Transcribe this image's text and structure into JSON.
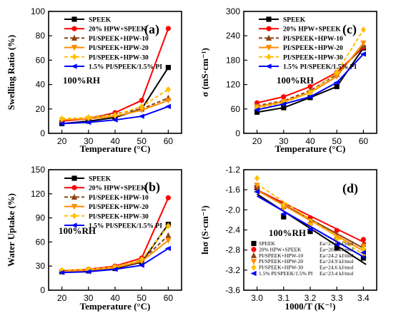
{
  "chart_data": [
    {
      "type": "line",
      "panel": "(a)",
      "condition": "100%RH",
      "xlabel": "Temperature (°C)",
      "ylabel": "Swelling Ratio (%)",
      "x": [
        20,
        30,
        40,
        50,
        60
      ],
      "xlim": [
        15,
        65
      ],
      "xticks": [
        20,
        30,
        40,
        50,
        60
      ],
      "ylim": [
        0,
        100
      ],
      "yticks": [
        0,
        20,
        40,
        60,
        80,
        100
      ],
      "legend_position": "top-left",
      "series": [
        {
          "name": "SPEEK",
          "color": "#000000",
          "dash": "solid",
          "marker": "square",
          "values": [
            8,
            10,
            13,
            20,
            54
          ]
        },
        {
          "name": "20% HPW+SPEEK",
          "color": "#ff0000",
          "dash": "solid",
          "marker": "circle",
          "values": [
            10,
            12,
            17,
            27,
            86
          ]
        },
        {
          "name": "PI/SPEEK+HPW-10",
          "color": "#8b4513",
          "dash": "dashed",
          "marker": "triangle",
          "values": [
            11,
            13,
            16,
            20,
            29
          ]
        },
        {
          "name": "PI/SPEEK+HPW-20",
          "color": "#ff8c00",
          "dash": "solid",
          "marker": "triangle-down",
          "values": [
            11,
            12,
            14,
            19,
            27
          ]
        },
        {
          "name": "PI/SPEEK+HPW-30",
          "color": "#ffc000",
          "dash": "dashed",
          "marker": "diamond",
          "values": [
            12,
            13,
            15,
            22,
            36
          ]
        },
        {
          "name": "1.5% PI/SPEEK/1.5% PI",
          "color": "#0000ff",
          "dash": "solid",
          "marker": "triangle-left",
          "values": [
            8,
            9,
            11,
            14,
            22
          ]
        }
      ]
    },
    {
      "type": "line",
      "panel": "(c)",
      "condition": "100%RH",
      "xlabel": "Temperature (°C)",
      "ylabel": "σ (mS·cm⁻¹)",
      "x": [
        20,
        30,
        40,
        50,
        60
      ],
      "xlim": [
        15,
        65
      ],
      "xticks": [
        20,
        30,
        40,
        50,
        60
      ],
      "ylim": [
        0,
        300
      ],
      "yticks": [
        0,
        60,
        120,
        180,
        240,
        300
      ],
      "legend_position": "top-left",
      "series": [
        {
          "name": "SPEEK",
          "color": "#000000",
          "dash": "solid",
          "marker": "square",
          "values": [
            52,
            63,
            88,
            115,
            210
          ]
        },
        {
          "name": "20% HPW+SPEEK",
          "color": "#ff0000",
          "dash": "solid",
          "marker": "circle",
          "values": [
            75,
            90,
            115,
            150,
            212
          ]
        },
        {
          "name": "PI/SPEEK+HPW-10",
          "color": "#8b4513",
          "dash": "dashed",
          "marker": "triangle",
          "values": [
            68,
            80,
            105,
            145,
            215
          ]
        },
        {
          "name": "PI/SPEEK+HPW-20",
          "color": "#ff8c00",
          "dash": "solid",
          "marker": "triangle-down",
          "values": [
            65,
            78,
            100,
            140,
            222
          ]
        },
        {
          "name": "PI/SPEEK+HPW-30",
          "color": "#ffc000",
          "dash": "dashed",
          "marker": "diamond",
          "values": [
            62,
            75,
            100,
            150,
            255
          ]
        },
        {
          "name": "1.5% PI/SPEEK/1.5% PI",
          "color": "#0000ff",
          "dash": "solid",
          "marker": "triangle-left",
          "values": [
            58,
            72,
            90,
            125,
            195
          ]
        }
      ]
    },
    {
      "type": "line",
      "panel": "(b)",
      "condition": "100%RH",
      "xlabel": "Temperature (°C)",
      "ylabel": "Water Uptake (%)",
      "x": [
        20,
        30,
        40,
        50,
        60
      ],
      "xlim": [
        15,
        65
      ],
      "xticks": [
        20,
        30,
        40,
        50,
        60
      ],
      "ylim": [
        0,
        150
      ],
      "yticks": [
        0,
        30,
        60,
        90,
        120,
        150
      ],
      "legend_position": "top-left",
      "series": [
        {
          "name": "SPEEK",
          "color": "#000000",
          "dash": "solid",
          "marker": "square",
          "values": [
            23,
            24,
            27,
            35,
            82
          ]
        },
        {
          "name": "20% HPW+SPEEK",
          "color": "#ff0000",
          "dash": "solid",
          "marker": "circle",
          "values": [
            24,
            26,
            30,
            40,
            115
          ]
        },
        {
          "name": "PI/SPEEK+HPW-10",
          "color": "#8b4513",
          "dash": "dashed",
          "marker": "triangle",
          "values": [
            24,
            25,
            28,
            37,
            68
          ]
        },
        {
          "name": "PI/SPEEK+HPW-20",
          "color": "#ff8c00",
          "dash": "solid",
          "marker": "triangle-down",
          "values": [
            23,
            25,
            28,
            36,
            62
          ]
        },
        {
          "name": "PI/SPEEK+HPW-30",
          "color": "#ffc000",
          "dash": "dashed",
          "marker": "diamond",
          "values": [
            25,
            26,
            29,
            38,
            80
          ]
        },
        {
          "name": "1.5% PI/SPEEK/1.5% PI",
          "color": "#0000ff",
          "dash": "solid",
          "marker": "triangle-left",
          "values": [
            22,
            23,
            26,
            31,
            52
          ]
        }
      ]
    },
    {
      "type": "scatter",
      "panel": "(d)",
      "condition": "100%RH",
      "xlabel": "1000/T (K⁻¹)",
      "ylabel": "lnσ (S·cm⁻¹)",
      "xlim": [
        2.95,
        3.45
      ],
      "xticks": [
        3.0,
        3.1,
        3.2,
        3.3,
        3.4
      ],
      "xtick_labels": [
        "3.0",
        "3.1",
        "3.2",
        "3.3",
        "3.4"
      ],
      "ylim": [
        -3.6,
        -1.2
      ],
      "yticks": [
        -3.6,
        -3.2,
        -2.8,
        -2.4,
        -2.0,
        -1.6,
        -1.2
      ],
      "ytick_labels": [
        "-3.6",
        "-3.2",
        "-2.8",
        "-2.4",
        "-2.0",
        "-1.6",
        "-1.2"
      ],
      "fit_lines": true,
      "legend_position": "bottom-left",
      "series": [
        {
          "name": "SPEEK",
          "ea": "Ea=27.0 kJ/mol",
          "color": "#000000",
          "marker": "square",
          "x": [
            3.0,
            3.1,
            3.2,
            3.3,
            3.4
          ],
          "y": [
            -1.56,
            -2.14,
            -2.43,
            -2.76,
            -2.96
          ]
        },
        {
          "name": "20% HPW+SPEEK",
          "ea": "Ea=20.8 kJ/mol",
          "color": "#ff0000",
          "marker": "circle",
          "x": [
            3.0,
            3.1,
            3.2,
            3.3,
            3.4
          ],
          "y": [
            -1.55,
            -1.9,
            -2.16,
            -2.41,
            -2.59
          ]
        },
        {
          "name": "PI/SPEEK+HPW-10",
          "ea": "Ea=24.2 kJ/mol",
          "color": "#8b4513",
          "marker": "triangle",
          "x": [
            3.0,
            3.1,
            3.2,
            3.3,
            3.4
          ],
          "y": [
            -1.54,
            -1.93,
            -2.25,
            -2.53,
            -2.68
          ]
        },
        {
          "name": "PI/SPEEK+HPW-20",
          "ea": "Ea=24.9 kJ/mol",
          "color": "#ff8c00",
          "marker": "triangle-down",
          "x": [
            3.0,
            3.1,
            3.2,
            3.3,
            3.4
          ],
          "y": [
            -1.51,
            -1.97,
            -2.3,
            -2.55,
            -2.73
          ]
        },
        {
          "name": "PI/SPEEK+HPW-30",
          "ea": "Ea=24.6 kJ/mol",
          "color": "#ffc000",
          "marker": "diamond",
          "x": [
            3.0,
            3.1,
            3.2,
            3.3,
            3.4
          ],
          "y": [
            -1.37,
            -1.9,
            -2.3,
            -2.59,
            -2.78
          ]
        },
        {
          "name": "1.5% PI/SPEEK/1.5% PI",
          "ea": "Ea=23.4 kJ/mol",
          "color": "#0000ff",
          "marker": "triangle-left",
          "x": [
            3.0,
            3.1,
            3.2,
            3.3,
            3.4
          ],
          "y": [
            -1.64,
            -2.08,
            -2.39,
            -2.69,
            -2.85
          ]
        }
      ]
    }
  ]
}
